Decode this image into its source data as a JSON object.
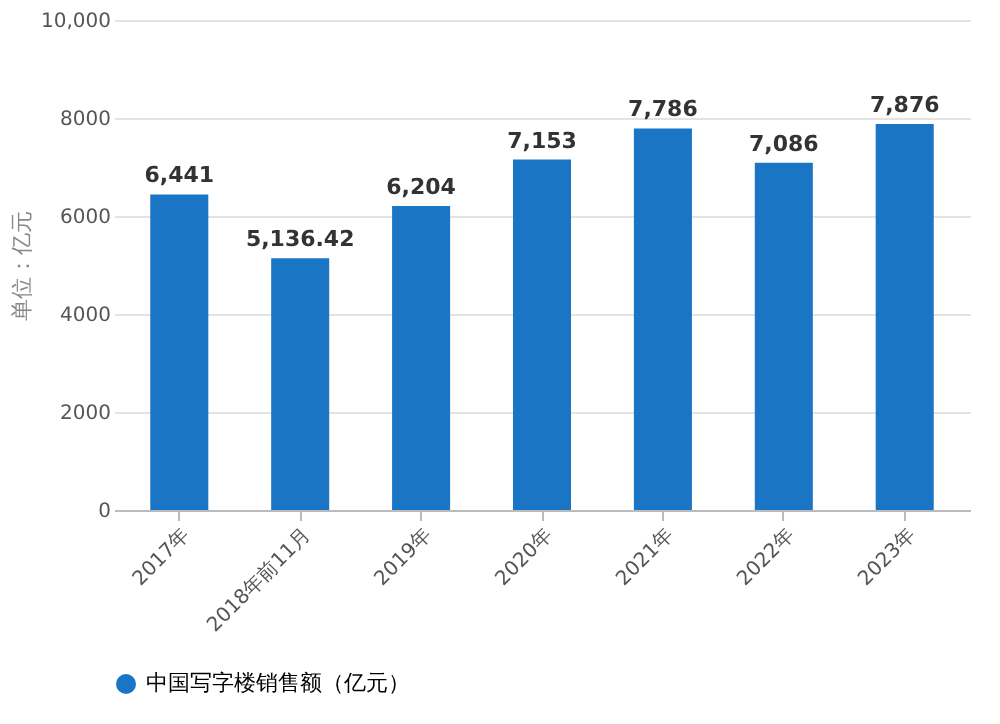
{
  "chart_data": {
    "type": "bar",
    "ylabel": "单位：亿元",
    "categories": [
      "2017年",
      "2018年前11月",
      "2019年",
      "2020年",
      "2021年",
      "2022年",
      "2023年"
    ],
    "series": [
      {
        "name": "中国写字楼销售额（亿元）",
        "color": "#1a75c4",
        "values": [
          6441,
          5136.42,
          6204,
          7153,
          7786,
          7086,
          7876
        ],
        "value_labels": [
          "6,441",
          "5,136.42",
          "6,204",
          "7,153",
          "7,786",
          "7,086",
          "7,876"
        ]
      }
    ],
    "ylim": [
      0,
      10000
    ],
    "yticks": [
      0,
      2000,
      4000,
      6000,
      8000,
      {
        "value": 10000,
        "label": "10,000"
      }
    ],
    "grid": "y",
    "legend": "bottom"
  }
}
